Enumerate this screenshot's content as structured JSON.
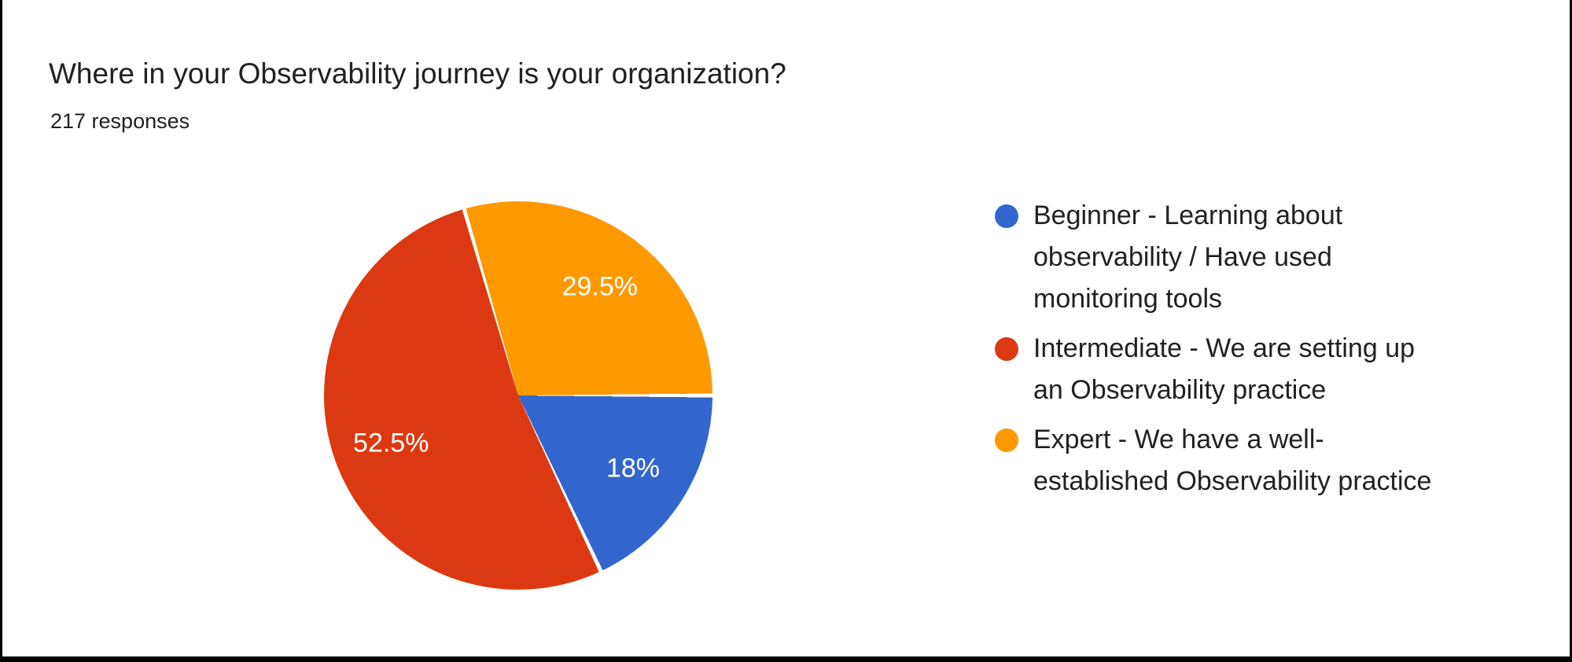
{
  "chart_data": {
    "type": "pie",
    "title": "Where in your Observability journey is your organization?",
    "subtitle": "217 responses",
    "legend_position": "right",
    "start_angle": "3-o-clock-clockwise",
    "slice_border_color": "#ffffff",
    "label_color": "#ffffff",
    "slices": [
      {
        "label": "Beginner - Learning about observability / Have used monitoring tools",
        "value": 18,
        "percent_label": "18%",
        "color": "#3366CC"
      },
      {
        "label": "Intermediate - We are setting up an Observability practice",
        "value": 52.5,
        "percent_label": "52.5%",
        "color": "#DC3912"
      },
      {
        "label": "Expert - We have a well-established Observability practice",
        "value": 29.5,
        "percent_label": "29.5%",
        "color": "#FF9900"
      }
    ]
  }
}
